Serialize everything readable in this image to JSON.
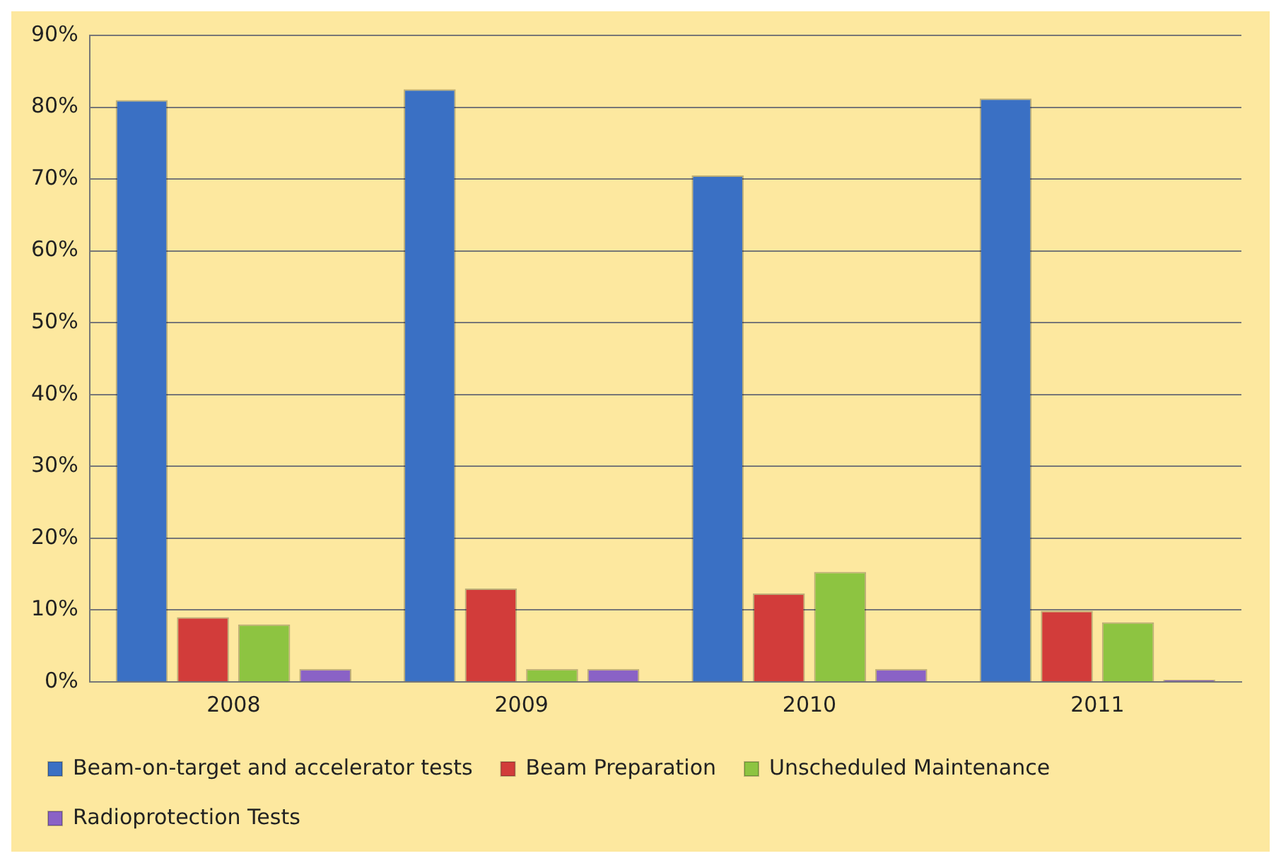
{
  "chart_data": {
    "type": "bar",
    "categories": [
      "2008",
      "2009",
      "2010",
      "2011"
    ],
    "series": [
      {
        "name": "Beam-on-target and accelerator tests",
        "color": "#3a70c4",
        "values": [
          81,
          82.5,
          70.5,
          81.2
        ]
      },
      {
        "name": "Beam Preparation",
        "color": "#d23c3a",
        "values": [
          9,
          13,
          12.3,
          9.9
        ]
      },
      {
        "name": "Unscheduled Maintenance",
        "color": "#8dc441",
        "values": [
          8,
          1.8,
          15.3,
          8.3
        ]
      },
      {
        "name": "Radioprotection Tests",
        "color": "#8a62c6",
        "values": [
          1.8,
          1.8,
          1.8,
          0.3
        ]
      }
    ],
    "ylim": [
      0,
      90
    ],
    "yticks": [
      {
        "value": 0,
        "label": "0%"
      },
      {
        "value": 10,
        "label": "10%"
      },
      {
        "value": 20,
        "label": "20%"
      },
      {
        "value": 30,
        "label": "30%"
      },
      {
        "value": 40,
        "label": "40%"
      },
      {
        "value": 50,
        "label": "50%"
      },
      {
        "value": 60,
        "label": "60%"
      },
      {
        "value": 70,
        "label": "70%"
      },
      {
        "value": 80,
        "label": "80%"
      },
      {
        "value": 90,
        "label": "90%"
      }
    ],
    "grid": "y",
    "legend": "bottom"
  }
}
